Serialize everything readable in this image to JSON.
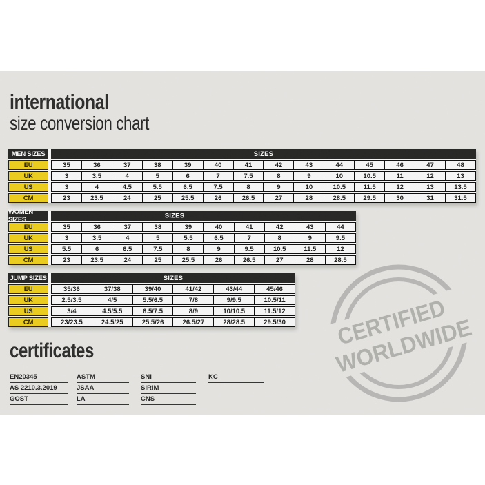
{
  "page": {
    "title": "international",
    "subtitle": "size conversion chart"
  },
  "chart_data": [
    {
      "type": "table",
      "name": "MEN SIZES",
      "sizes_label": "SIZES",
      "rows": [
        {
          "label": "EU",
          "values": [
            "35",
            "36",
            "37",
            "38",
            "39",
            "40",
            "41",
            "42",
            "43",
            "44",
            "45",
            "46",
            "47",
            "48"
          ]
        },
        {
          "label": "UK",
          "values": [
            "3",
            "3.5",
            "4",
            "5",
            "6",
            "7",
            "7.5",
            "8",
            "9",
            "10",
            "10.5",
            "11",
            "12",
            "13"
          ]
        },
        {
          "label": "US",
          "values": [
            "3",
            "4",
            "4.5",
            "5.5",
            "6.5",
            "7.5",
            "8",
            "9",
            "10",
            "10.5",
            "11.5",
            "12",
            "13",
            "13.5"
          ]
        },
        {
          "label": "CM",
          "values": [
            "23",
            "23.5",
            "24",
            "25",
            "25.5",
            "26",
            "26.5",
            "27",
            "28",
            "28.5",
            "29.5",
            "30",
            "31",
            "31.5"
          ]
        }
      ]
    },
    {
      "type": "table",
      "name": "WOMEN SIZES",
      "sizes_label": "SIZES",
      "rows": [
        {
          "label": "EU",
          "values": [
            "35",
            "36",
            "37",
            "38",
            "39",
            "40",
            "41",
            "42",
            "43",
            "44"
          ]
        },
        {
          "label": "UK",
          "values": [
            "3",
            "3.5",
            "4",
            "5",
            "5.5",
            "6.5",
            "7",
            "8",
            "9",
            "9.5"
          ]
        },
        {
          "label": "US",
          "values": [
            "5.5",
            "6",
            "6.5",
            "7.5",
            "8",
            "9",
            "9.5",
            "10.5",
            "11.5",
            "12"
          ]
        },
        {
          "label": "CM",
          "values": [
            "23",
            "23.5",
            "24",
            "25",
            "25.5",
            "26",
            "26.5",
            "27",
            "28",
            "28.5"
          ]
        }
      ]
    },
    {
      "type": "table",
      "name": "JUMP SIZES",
      "sizes_label": "SIZES",
      "rows": [
        {
          "label": "EU",
          "values": [
            "35/36",
            "37/38",
            "39/40",
            "41/42",
            "43/44",
            "45/46"
          ]
        },
        {
          "label": "UK",
          "values": [
            "2.5/3.5",
            "4/5",
            "5.5/6.5",
            "7/8",
            "9/9.5",
            "10.5/11"
          ]
        },
        {
          "label": "US",
          "values": [
            "3/4",
            "4.5/5.5",
            "6.5/7.5",
            "8/9",
            "10/10.5",
            "11.5/12"
          ]
        },
        {
          "label": "CM",
          "values": [
            "23/23.5",
            "24.5/25",
            "25.5/26",
            "26.5/27",
            "28/28.5",
            "29.5/30"
          ]
        }
      ]
    }
  ],
  "certificates": {
    "title": "certificates",
    "columns": [
      [
        "EN20345",
        "AS 2210.3.2019",
        "GOST"
      ],
      [
        "ASTM",
        "JSAA",
        "LA"
      ],
      [
        "SNI",
        "SIRIM",
        "CNS"
      ],
      [
        "KC"
      ]
    ]
  },
  "stamp": {
    "line1": "CERTIFIED",
    "line2": "WORLDWIDE"
  },
  "colors": {
    "accent_yellow": "#f2d211",
    "header_black": "#1b1b1b",
    "panel_gray": "#ebeae8",
    "stamp_gray": "#b3b2b0"
  }
}
